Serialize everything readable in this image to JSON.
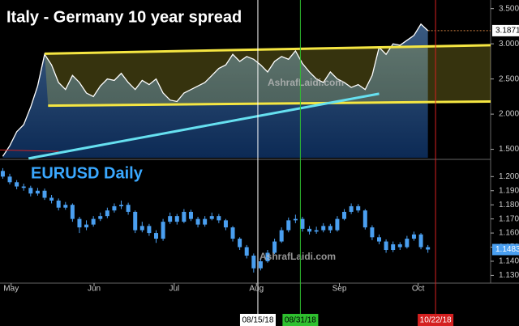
{
  "chart_data": [
    {
      "type": "line",
      "title": "Italy - Germany 10 year spread",
      "watermark": "AshrafLaidi.com",
      "color": "#ffffff",
      "values": [
        1.4,
        1.55,
        1.75,
        1.85,
        2.1,
        2.4,
        2.85,
        2.7,
        2.45,
        2.35,
        2.55,
        2.45,
        2.3,
        2.25,
        2.4,
        2.5,
        2.48,
        2.58,
        2.45,
        2.35,
        2.48,
        2.42,
        2.5,
        2.3,
        2.2,
        2.18,
        2.3,
        2.35,
        2.4,
        2.45,
        2.55,
        2.65,
        2.7,
        2.85,
        2.75,
        2.82,
        2.78,
        2.7,
        2.6,
        2.75,
        2.82,
        2.78,
        2.9,
        2.72,
        2.6,
        2.5,
        2.45,
        2.6,
        2.5,
        2.45,
        2.38,
        2.42,
        2.35,
        2.55,
        2.95,
        2.85,
        3.0,
        2.98,
        3.05,
        3.12,
        3.28,
        3.1871
      ],
      "xlim": [
        -0.4,
        70
      ],
      "ylim": [
        1.38,
        3.6
      ],
      "yticks": [
        {
          "value": 1.5,
          "label": "1.5000"
        },
        {
          "value": 2.0,
          "label": "2.0000"
        },
        {
          "value": 2.5,
          "label": "2.5000"
        },
        {
          "value": 3.0,
          "label": "3.0000"
        },
        {
          "value": 3.5,
          "label": "3.5000"
        }
      ],
      "channel_upper": {
        "x": [
          6,
          70
        ],
        "y": [
          2.86,
          2.98
        ],
        "color": "#f5e642"
      },
      "channel_lower": {
        "x": [
          6.5,
          70
        ],
        "y": [
          2.12,
          2.18
        ],
        "color": "#f5e642"
      },
      "trendline": {
        "x": [
          3.7,
          54
        ],
        "y": [
          1.37,
          2.29
        ],
        "color": "#66e0f0"
      },
      "red_line": {
        "x": [
          -0.4,
          8
        ],
        "y": [
          1.49,
          1.47
        ],
        "color": "#d22020"
      }
    },
    {
      "type": "candlestick",
      "title": "EURUSD Daily",
      "watermark": "AshrafLaidi.com",
      "color": "#4a9ff0",
      "open": [
        1.204,
        1.2,
        1.196,
        1.193,
        1.192,
        1.188,
        1.19,
        1.185,
        1.183,
        1.178,
        1.18,
        1.17,
        1.164,
        1.166,
        1.17,
        1.172,
        1.176,
        1.179,
        1.18,
        1.175,
        1.162,
        1.165,
        1.16,
        1.156,
        1.168,
        1.172,
        1.168,
        1.175,
        1.17,
        1.166,
        1.17,
        1.172,
        1.169,
        1.164,
        1.156,
        1.15,
        1.144,
        1.135,
        1.14,
        1.146,
        1.154,
        1.162,
        1.169,
        1.17,
        1.163,
        1.161,
        1.162,
        1.165,
        1.162,
        1.17,
        1.175,
        1.179,
        1.176,
        1.164,
        1.157,
        1.154,
        1.148,
        1.152,
        1.15,
        1.156,
        1.159,
        1.15
      ],
      "high": [
        1.206,
        1.202,
        1.1975,
        1.195,
        1.1935,
        1.192,
        1.1915,
        1.187,
        1.1845,
        1.182,
        1.181,
        1.1715,
        1.169,
        1.172,
        1.1745,
        1.178,
        1.181,
        1.183,
        1.1815,
        1.176,
        1.168,
        1.1665,
        1.162,
        1.17,
        1.1745,
        1.1735,
        1.177,
        1.1765,
        1.1715,
        1.172,
        1.1745,
        1.1735,
        1.17,
        1.165,
        1.157,
        1.1515,
        1.1455,
        1.142,
        1.148,
        1.156,
        1.164,
        1.171,
        1.173,
        1.1715,
        1.165,
        1.1645,
        1.167,
        1.1665,
        1.172,
        1.177,
        1.181,
        1.1805,
        1.177,
        1.1655,
        1.159,
        1.1555,
        1.154,
        1.1535,
        1.158,
        1.161,
        1.16,
        1.1515
      ],
      "low": [
        1.1985,
        1.1945,
        1.191,
        1.19,
        1.186,
        1.1865,
        1.1835,
        1.181,
        1.176,
        1.1765,
        1.168,
        1.16,
        1.162,
        1.1645,
        1.1685,
        1.1705,
        1.1745,
        1.177,
        1.173,
        1.16,
        1.1605,
        1.158,
        1.153,
        1.1545,
        1.1665,
        1.166,
        1.167,
        1.1685,
        1.164,
        1.1645,
        1.169,
        1.167,
        1.162,
        1.154,
        1.148,
        1.142,
        1.132,
        1.1335,
        1.139,
        1.145,
        1.153,
        1.1605,
        1.167,
        1.161,
        1.159,
        1.1595,
        1.1605,
        1.16,
        1.161,
        1.169,
        1.1735,
        1.1745,
        1.1625,
        1.155,
        1.152,
        1.146,
        1.1465,
        1.148,
        1.149,
        1.1545,
        1.1485,
        1.146
      ],
      "close": [
        1.2,
        1.196,
        1.193,
        1.192,
        1.188,
        1.19,
        1.185,
        1.183,
        1.178,
        1.18,
        1.17,
        1.164,
        1.166,
        1.17,
        1.172,
        1.176,
        1.179,
        1.18,
        1.175,
        1.162,
        1.165,
        1.16,
        1.156,
        1.168,
        1.172,
        1.168,
        1.175,
        1.17,
        1.166,
        1.17,
        1.172,
        1.169,
        1.164,
        1.156,
        1.15,
        1.144,
        1.135,
        1.14,
        1.146,
        1.154,
        1.162,
        1.169,
        1.17,
        1.163,
        1.161,
        1.162,
        1.165,
        1.162,
        1.17,
        1.175,
        1.179,
        1.176,
        1.164,
        1.157,
        1.154,
        1.148,
        1.152,
        1.15,
        1.156,
        1.159,
        1.15,
        1.1483
      ],
      "xlim": [
        -0.4,
        70
      ],
      "xticks": [
        {
          "value": 1.2,
          "label": "May"
        },
        {
          "value": 13.1,
          "label": "Jun"
        },
        {
          "value": 24.6,
          "label": "Jul"
        },
        {
          "value": 36.4,
          "label": "Aug"
        },
        {
          "value": 48.3,
          "label": "Sep"
        },
        {
          "value": 59.6,
          "label": "Oct"
        }
      ],
      "ylim": [
        1.1245,
        1.2105
      ],
      "yticks": [
        {
          "value": 1.13,
          "label": "1.1300"
        },
        {
          "value": 1.14,
          "label": "1.1400"
        },
        {
          "value": 1.15,
          "label": "1.1500"
        },
        {
          "value": 1.16,
          "label": "1.1600"
        },
        {
          "value": 1.17,
          "label": "1.1700"
        },
        {
          "value": 1.18,
          "label": "1.1800"
        },
        {
          "value": 1.19,
          "label": "1.1900"
        },
        {
          "value": 1.2,
          "label": "1.2000"
        }
      ]
    }
  ],
  "markers": [
    {
      "value": 36.6,
      "label": "08/15/18",
      "color": "#ffffff",
      "text_color": "#000000"
    },
    {
      "value": 42.7,
      "label": "08/31/18",
      "color": "#2fc02f",
      "text_color": "#000000"
    },
    {
      "value": 62.1,
      "label": "10/22/18",
      "color": "#d42020",
      "text_color": "#ffffff"
    }
  ]
}
